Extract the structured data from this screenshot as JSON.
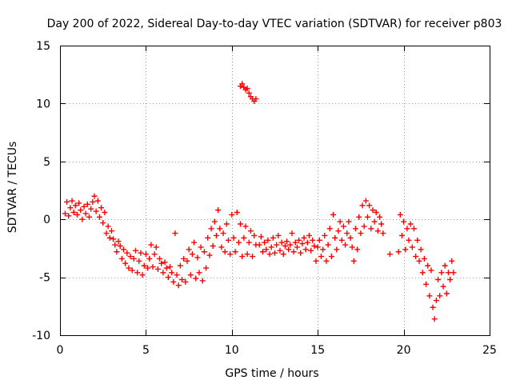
{
  "chart_data": {
    "type": "scatter",
    "title": "Day 200 of 2022, Sidereal Day-to-day VTEC variation (SDTVAR) for receiver p803",
    "xlabel": "GPS time / hours",
    "ylabel": "SDTVAR / TECUs",
    "xlim": [
      0,
      25
    ],
    "ylim": [
      -10,
      15
    ],
    "xticks": [
      0,
      5,
      10,
      15,
      20,
      25
    ],
    "yticks": [
      -10,
      -5,
      0,
      5,
      10,
      15
    ],
    "xtick_labels": [
      "0",
      "5",
      "10",
      "15",
      "20",
      "25"
    ],
    "ytick_labels": [
      "-10",
      "-5",
      "0",
      "5",
      "10",
      "15"
    ],
    "grid": true,
    "marker": "+",
    "color": "#ff0000",
    "series": [
      {
        "name": "SDTVAR",
        "points": [
          [
            0.3,
            0.5
          ],
          [
            0.4,
            1.5
          ],
          [
            0.5,
            0.3
          ],
          [
            0.6,
            1.0
          ],
          [
            0.7,
            1.6
          ],
          [
            0.8,
            0.6
          ],
          [
            0.9,
            1.2
          ],
          [
            1.0,
            0.4
          ],
          [
            1.1,
            1.4
          ],
          [
            1.2,
            0.8
          ],
          [
            1.3,
            0.0
          ],
          [
            1.4,
            1.1
          ],
          [
            1.5,
            0.5
          ],
          [
            1.6,
            1.3
          ],
          [
            1.7,
            0.2
          ],
          [
            1.8,
            0.9
          ],
          [
            1.9,
            1.5
          ],
          [
            2.0,
            2.0
          ],
          [
            2.1,
            0.7
          ],
          [
            2.2,
            1.6
          ],
          [
            2.3,
            0.2
          ],
          [
            2.4,
            1.0
          ],
          [
            2.5,
            -0.3
          ],
          [
            2.6,
            0.6
          ],
          [
            2.7,
            -1.2
          ],
          [
            2.8,
            -0.6
          ],
          [
            2.9,
            -1.6
          ],
          [
            3.0,
            -1.0
          ],
          [
            3.1,
            -1.7
          ],
          [
            3.2,
            -2.2
          ],
          [
            3.3,
            -2.8
          ],
          [
            3.4,
            -1.9
          ],
          [
            3.5,
            -2.3
          ],
          [
            3.6,
            -3.4
          ],
          [
            3.7,
            -2.6
          ],
          [
            3.8,
            -3.8
          ],
          [
            3.9,
            -2.9
          ],
          [
            4.0,
            -4.2
          ],
          [
            4.1,
            -3.2
          ],
          [
            4.2,
            -4.4
          ],
          [
            4.3,
            -3.4
          ],
          [
            4.4,
            -2.7
          ],
          [
            4.5,
            -4.6
          ],
          [
            4.6,
            -3.6
          ],
          [
            4.7,
            -2.9
          ],
          [
            4.8,
            -4.8
          ],
          [
            4.9,
            -4.0
          ],
          [
            5.0,
            -3.0
          ],
          [
            5.1,
            -4.2
          ],
          [
            5.2,
            -3.4
          ],
          [
            5.3,
            -2.2
          ],
          [
            5.4,
            -4.1
          ],
          [
            5.5,
            -3.0
          ],
          [
            5.6,
            -2.4
          ],
          [
            5.7,
            -4.3
          ],
          [
            5.8,
            -3.4
          ],
          [
            5.9,
            -3.8
          ],
          [
            6.0,
            -4.6
          ],
          [
            6.1,
            -3.7
          ],
          [
            6.2,
            -4.2
          ],
          [
            6.3,
            -5.0
          ],
          [
            6.4,
            -4.1
          ],
          [
            6.5,
            -4.6
          ],
          [
            6.6,
            -5.4
          ],
          [
            6.7,
            -1.2
          ],
          [
            6.8,
            -4.8
          ],
          [
            6.9,
            -5.7
          ],
          [
            7.0,
            -4.0
          ],
          [
            7.1,
            -5.2
          ],
          [
            7.2,
            -3.4
          ],
          [
            7.3,
            -5.4
          ],
          [
            7.4,
            -3.6
          ],
          [
            7.5,
            -2.6
          ],
          [
            7.6,
            -4.8
          ],
          [
            7.7,
            -3.0
          ],
          [
            7.8,
            -2.0
          ],
          [
            7.9,
            -5.1
          ],
          [
            8.0,
            -3.3
          ],
          [
            8.1,
            -4.6
          ],
          [
            8.2,
            -2.4
          ],
          [
            8.3,
            -5.3
          ],
          [
            8.4,
            -2.8
          ],
          [
            8.5,
            -4.2
          ],
          [
            8.6,
            -1.6
          ],
          [
            8.7,
            -3.1
          ],
          [
            8.8,
            -0.8
          ],
          [
            8.9,
            -2.3
          ],
          [
            9.0,
            -0.2
          ],
          [
            9.1,
            -1.4
          ],
          [
            9.2,
            0.8
          ],
          [
            9.3,
            -0.8
          ],
          [
            9.4,
            -2.4
          ],
          [
            9.5,
            -1.2
          ],
          [
            9.6,
            -2.8
          ],
          [
            9.7,
            -0.4
          ],
          [
            9.8,
            -1.8
          ],
          [
            9.9,
            -3.0
          ],
          [
            10.0,
            0.4
          ],
          [
            10.1,
            -1.6
          ],
          [
            10.2,
            -2.8
          ],
          [
            10.3,
            0.6
          ],
          [
            10.4,
            -2.0
          ],
          [
            10.5,
            -0.4
          ],
          [
            10.6,
            -3.2
          ],
          [
            10.7,
            -1.6
          ],
          [
            10.8,
            -0.6
          ],
          [
            10.9,
            -3.0
          ],
          [
            11.0,
            -2.0
          ],
          [
            11.1,
            -1.0
          ],
          [
            11.2,
            -3.2
          ],
          [
            11.3,
            -1.4
          ],
          [
            11.4,
            -2.2
          ],
          [
            10.5,
            11.5
          ],
          [
            10.6,
            11.7
          ],
          [
            10.7,
            11.4
          ],
          [
            10.8,
            11.2
          ],
          [
            10.9,
            11.3
          ],
          [
            11.0,
            10.9
          ],
          [
            11.1,
            10.6
          ],
          [
            11.2,
            10.4
          ],
          [
            11.3,
            10.2
          ],
          [
            11.4,
            10.4
          ],
          [
            11.6,
            -2.2
          ],
          [
            11.7,
            -1.5
          ],
          [
            11.8,
            -2.8
          ],
          [
            11.9,
            -2.0
          ],
          [
            12.0,
            -2.6
          ],
          [
            12.1,
            -1.8
          ],
          [
            12.2,
            -3.0
          ],
          [
            12.3,
            -2.4
          ],
          [
            12.4,
            -1.6
          ],
          [
            12.5,
            -2.9
          ],
          [
            12.6,
            -2.2
          ],
          [
            12.7,
            -1.4
          ],
          [
            12.8,
            -2.7
          ],
          [
            12.9,
            -2.0
          ],
          [
            13.0,
            -3.0
          ],
          [
            13.1,
            -2.3
          ],
          [
            13.2,
            -1.9
          ],
          [
            13.3,
            -2.6
          ],
          [
            13.4,
            -2.2
          ],
          [
            13.5,
            -1.2
          ],
          [
            13.6,
            -2.8
          ],
          [
            13.7,
            -2.0
          ],
          [
            13.8,
            -2.4
          ],
          [
            13.9,
            -1.8
          ],
          [
            14.0,
            -2.9
          ],
          [
            14.1,
            -2.1
          ],
          [
            14.2,
            -1.6
          ],
          [
            14.3,
            -2.6
          ],
          [
            14.4,
            -2.0
          ],
          [
            14.5,
            -1.4
          ],
          [
            14.6,
            -2.7
          ],
          [
            14.7,
            -1.8
          ],
          [
            14.8,
            -2.3
          ],
          [
            14.9,
            -3.6
          ],
          [
            15.0,
            -2.4
          ],
          [
            15.1,
            -1.8
          ],
          [
            15.2,
            -3.2
          ],
          [
            15.3,
            -2.6
          ],
          [
            15.4,
            -1.4
          ],
          [
            15.5,
            -3.6
          ],
          [
            15.6,
            -2.2
          ],
          [
            15.7,
            -0.8
          ],
          [
            15.8,
            -3.2
          ],
          [
            15.9,
            0.4
          ],
          [
            16.0,
            -1.6
          ],
          [
            16.1,
            -2.6
          ],
          [
            16.2,
            -1.0
          ],
          [
            16.3,
            -0.2
          ],
          [
            16.4,
            -1.8
          ],
          [
            16.5,
            -0.6
          ],
          [
            16.6,
            -2.2
          ],
          [
            16.7,
            -1.2
          ],
          [
            16.8,
            -0.2
          ],
          [
            16.9,
            -1.6
          ],
          [
            17.0,
            -2.4
          ],
          [
            17.1,
            -3.6
          ],
          [
            17.2,
            -0.8
          ],
          [
            17.3,
            -2.6
          ],
          [
            17.4,
            0.2
          ],
          [
            17.5,
            -1.2
          ],
          [
            17.6,
            1.2
          ],
          [
            17.7,
            -0.6
          ],
          [
            17.8,
            1.6
          ],
          [
            17.9,
            0.2
          ],
          [
            18.0,
            1.2
          ],
          [
            18.1,
            -0.8
          ],
          [
            18.2,
            0.8
          ],
          [
            18.3,
            -0.2
          ],
          [
            18.4,
            0.6
          ],
          [
            18.5,
            -1.0
          ],
          [
            18.6,
            0.2
          ],
          [
            18.7,
            -0.4
          ],
          [
            18.8,
            -1.2
          ],
          [
            19.2,
            -3.0
          ],
          [
            19.7,
            -2.8
          ],
          [
            19.8,
            0.4
          ],
          [
            19.9,
            -1.4
          ],
          [
            20.0,
            -0.2
          ],
          [
            20.1,
            -2.6
          ],
          [
            20.2,
            -0.8
          ],
          [
            20.3,
            -1.8
          ],
          [
            20.4,
            -0.4
          ],
          [
            20.5,
            -2.4
          ],
          [
            20.6,
            -0.8
          ],
          [
            20.7,
            -3.2
          ],
          [
            20.8,
            -1.8
          ],
          [
            20.9,
            -3.6
          ],
          [
            21.0,
            -2.6
          ],
          [
            21.1,
            -4.6
          ],
          [
            21.2,
            -3.4
          ],
          [
            21.3,
            -5.6
          ],
          [
            21.4,
            -4.0
          ],
          [
            21.5,
            -6.6
          ],
          [
            21.6,
            -4.4
          ],
          [
            21.7,
            -7.6
          ],
          [
            21.8,
            -8.6
          ],
          [
            21.9,
            -7.0
          ],
          [
            22.0,
            -5.2
          ],
          [
            22.1,
            -6.6
          ],
          [
            22.2,
            -4.6
          ],
          [
            22.3,
            -5.8
          ],
          [
            22.4,
            -4.0
          ],
          [
            22.5,
            -6.4
          ],
          [
            22.6,
            -4.6
          ],
          [
            22.7,
            -5.2
          ],
          [
            22.8,
            -3.6
          ],
          [
            22.9,
            -4.6
          ]
        ]
      }
    ]
  }
}
